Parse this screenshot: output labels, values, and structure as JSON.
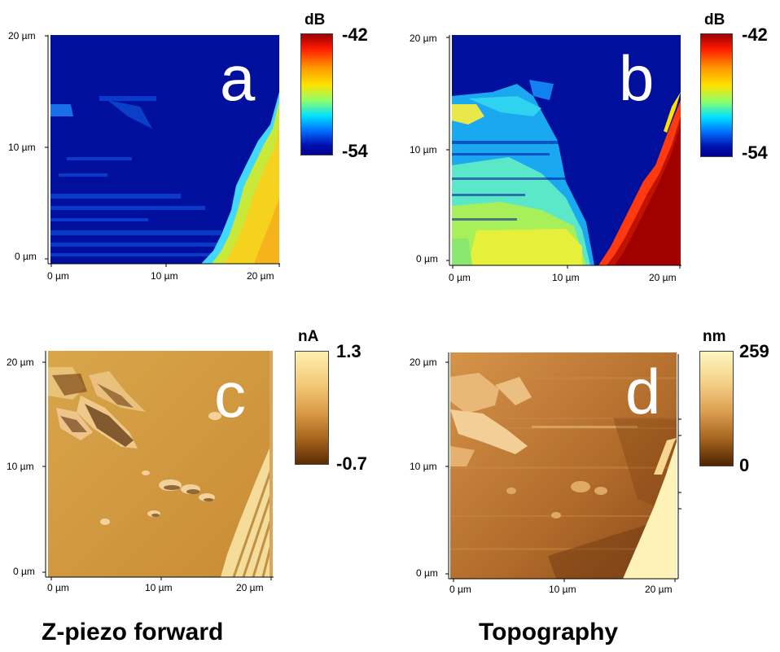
{
  "panels": {
    "a": {
      "letter": "a",
      "y_ticks": [
        "20 µm",
        "10 µm",
        "0 µm"
      ],
      "x_ticks": [
        "0 µm",
        "10 µm",
        "20 µm"
      ],
      "colorbar": {
        "unit": "dB",
        "max": "-42",
        "min": "-54",
        "colormap": "jet"
      }
    },
    "b": {
      "letter": "b",
      "y_ticks": [
        "20 µm",
        "10 µm",
        "0 µm"
      ],
      "x_ticks": [
        "0 µm",
        "10 µm",
        "20 µm"
      ],
      "colorbar": {
        "unit": "dB",
        "max": "-42",
        "min": "-54",
        "colormap": "jet"
      }
    },
    "c": {
      "letter": "c",
      "y_ticks": [
        "20 µm",
        "10 µm",
        "0 µm"
      ],
      "x_ticks": [
        "0 µm",
        "10 µm",
        "20 µm"
      ],
      "colorbar": {
        "unit": "nA",
        "max": "1.3",
        "min": "-0.7",
        "colormap": "copper"
      }
    },
    "d": {
      "letter": "d",
      "y_ticks": [
        "20 µm",
        "10 µm",
        "0 µm"
      ],
      "x_ticks": [
        "0 µm",
        "10 µm",
        "20 µm"
      ],
      "colorbar": {
        "unit": "nm",
        "max": "259",
        "min": "0",
        "colormap": "copper"
      }
    }
  },
  "captions": {
    "left": "Z-piezo forward",
    "right": "Topography"
  }
}
